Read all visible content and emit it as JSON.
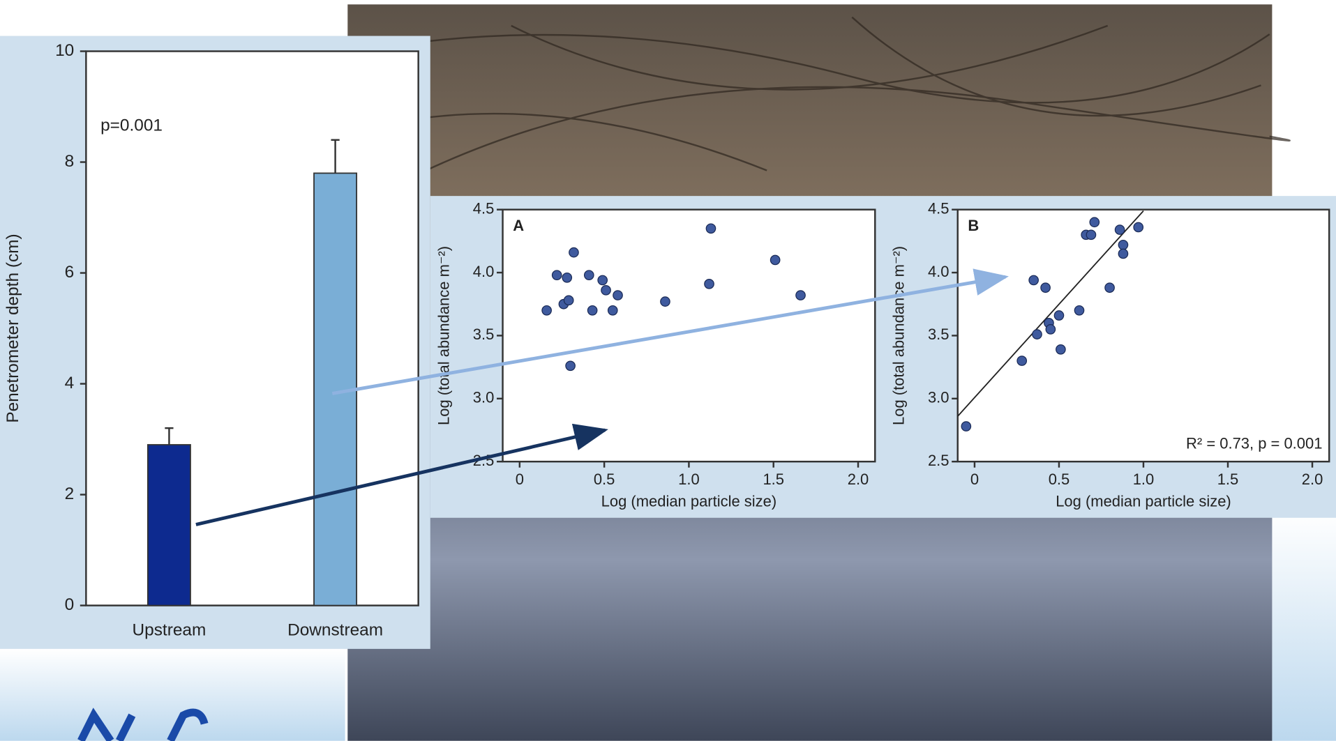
{
  "chart_data": [
    {
      "type": "bar",
      "ylabel": "Penetrometer depth (cm)",
      "annotation": "p=0.001",
      "categories": [
        "Upstream",
        "Downstream"
      ],
      "values": [
        2.9,
        7.8
      ],
      "errors": [
        0.3,
        0.6
      ],
      "colors": [
        "#0d2a8f",
        "#7aaed6"
      ],
      "ylim": [
        0,
        10
      ],
      "yticks": [
        0,
        2,
        4,
        6,
        8,
        10
      ]
    },
    {
      "type": "scatter",
      "panel": "A",
      "xlabel": "Log (median particle size)",
      "ylabel": "Log (total abundance m⁻²)",
      "color": "#3f5a9e",
      "x": [
        0.16,
        0.22,
        0.28,
        0.32,
        0.26,
        0.29,
        0.3,
        0.41,
        0.43,
        0.49,
        0.51,
        0.55,
        0.58,
        0.86,
        1.12,
        1.13,
        1.51,
        1.66
      ],
      "values": [
        3.7,
        3.98,
        3.96,
        4.16,
        3.75,
        3.78,
        3.26,
        3.98,
        3.7,
        3.94,
        3.86,
        3.7,
        3.82,
        3.77,
        3.91,
        4.35,
        4.1,
        3.82
      ],
      "xlim": [
        -0.1,
        2.1
      ],
      "ylim": [
        2.5,
        4.5
      ],
      "xticks": [
        0,
        0.5,
        {
          "value": 1,
          "label": "1.0"
        },
        1.5,
        {
          "value": 2,
          "label": "2.0"
        }
      ],
      "yticks": [
        2.5,
        {
          "value": 3,
          "label": "3.0"
        },
        3.5,
        {
          "value": 4,
          "label": "4.0"
        },
        4.5
      ]
    },
    {
      "type": "scatter",
      "panel": "B",
      "xlabel": "Log (median particle size)",
      "ylabel": "Log (total abundance m⁻²)",
      "annotation": "R² = 0.73, p = 0.001",
      "color": "#3f5a9e",
      "x": [
        -0.05,
        0.28,
        0.35,
        0.37,
        0.42,
        0.44,
        0.45,
        0.5,
        0.51,
        0.62,
        0.66,
        0.69,
        0.71,
        0.8,
        0.86,
        0.88,
        0.88,
        0.97
      ],
      "values": [
        2.78,
        3.3,
        3.94,
        3.51,
        3.88,
        3.6,
        3.55,
        3.66,
        3.39,
        3.7,
        4.3,
        4.3,
        4.4,
        3.88,
        4.34,
        4.22,
        4.15,
        4.36
      ],
      "fit": {
        "x": [
          -0.1,
          1.0
        ],
        "values": [
          2.86,
          4.49
        ]
      },
      "xlim": [
        -0.1,
        2.1
      ],
      "ylim": [
        2.5,
        4.5
      ],
      "xticks": [
        0,
        0.5,
        {
          "value": 1,
          "label": "1.0"
        },
        1.5,
        {
          "value": 2,
          "label": "2.0"
        }
      ],
      "yticks": [
        2.5,
        {
          "value": 3,
          "label": "3.0"
        },
        3.5,
        {
          "value": 4,
          "label": "4.0"
        },
        4.5
      ]
    }
  ]
}
